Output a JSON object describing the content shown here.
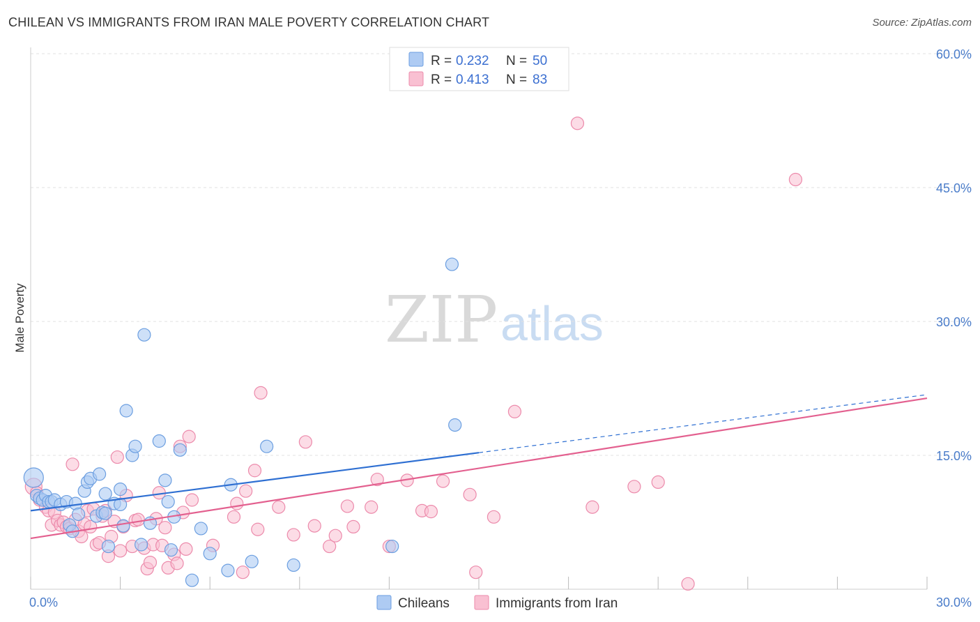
{
  "title": "CHILEAN VS IMMIGRANTS FROM IRAN MALE POVERTY CORRELATION CHART",
  "source": "Source: ZipAtlas.com",
  "watermark": {
    "zip": "ZIP",
    "atlas": "atlas"
  },
  "colors": {
    "chileans_fill": "#aecbf3",
    "chileans_stroke": "#6b9ee0",
    "chileans_line": "#2e6fd2",
    "iran_fill": "#f9c0d2",
    "iran_stroke": "#ec8aab",
    "iran_line": "#e3608f",
    "grid": "#e1e1e1",
    "tick_text": "#4a7cc9"
  },
  "legend_top": {
    "rows": [
      {
        "r_label": "R =",
        "r_value": "0.232",
        "n_label": "N =",
        "n_value": "50"
      },
      {
        "r_label": "R =",
        "r_value": "0.413",
        "n_label": "N =",
        "n_value": "83"
      }
    ]
  },
  "chart_data": {
    "type": "scatter",
    "title": "CHILEAN VS IMMIGRANTS FROM IRAN MALE POVERTY CORRELATION CHART",
    "xlabel": "",
    "ylabel": "Male Poverty",
    "xlim": [
      0,
      30
    ],
    "ylim": [
      0,
      60
    ],
    "x_tick_labels": [
      "0.0%",
      "30.0%"
    ],
    "y_ticks": [
      15,
      30,
      45,
      60
    ],
    "y_tick_labels": [
      "15.0%",
      "30.0%",
      "45.0%",
      "60.0%"
    ],
    "grid": true,
    "legend": [
      "Chileans",
      "Immigrants from Iran"
    ],
    "series": [
      {
        "name": "Chileans",
        "r": 0.232,
        "n": 50,
        "trend": {
          "x0": 0,
          "y0": 8.8,
          "x1": 15,
          "y1": 15.3,
          "dashed_to_x": 30,
          "dashed_to_y": 21.8
        },
        "points": [
          [
            0.1,
            12.5,
            14
          ],
          [
            0.2,
            10.5,
            9
          ],
          [
            0.3,
            10.2,
            9
          ],
          [
            0.4,
            10.0,
            9
          ],
          [
            0.5,
            10.5,
            9
          ],
          [
            0.6,
            9.8,
            9
          ],
          [
            0.7,
            9.8,
            9
          ],
          [
            0.8,
            10.0,
            9
          ],
          [
            1.0,
            9.5,
            9
          ],
          [
            1.2,
            9.8,
            9
          ],
          [
            1.3,
            7.2,
            9
          ],
          [
            1.4,
            6.5,
            9
          ],
          [
            1.5,
            9.6,
            9
          ],
          [
            1.6,
            8.4,
            9
          ],
          [
            1.8,
            11.0,
            9
          ],
          [
            1.9,
            12.0,
            9
          ],
          [
            2.0,
            12.4,
            9
          ],
          [
            2.2,
            8.2,
            9
          ],
          [
            2.3,
            12.9,
            9
          ],
          [
            2.4,
            8.6,
            9
          ],
          [
            2.5,
            10.7,
            9
          ],
          [
            2.6,
            4.8,
            9
          ],
          [
            2.8,
            9.6,
            9
          ],
          [
            3.0,
            9.5,
            9
          ],
          [
            3.0,
            11.2,
            9
          ],
          [
            3.1,
            7.1,
            9
          ],
          [
            3.2,
            20.0,
            9
          ],
          [
            3.4,
            15.0,
            9
          ],
          [
            3.5,
            16.0,
            9
          ],
          [
            3.7,
            5.0,
            9
          ],
          [
            3.8,
            28.5,
            9
          ],
          [
            4.0,
            7.4,
            9
          ],
          [
            4.3,
            16.6,
            9
          ],
          [
            4.5,
            12.2,
            9
          ],
          [
            4.6,
            9.8,
            9
          ],
          [
            4.7,
            4.4,
            9
          ],
          [
            4.8,
            8.1,
            9
          ],
          [
            5.0,
            15.6,
            9
          ],
          [
            5.4,
            1.0,
            9
          ],
          [
            5.7,
            6.8,
            9
          ],
          [
            6.0,
            4.0,
            9
          ],
          [
            6.6,
            2.1,
            9
          ],
          [
            6.7,
            11.7,
            9
          ],
          [
            7.4,
            3.1,
            9
          ],
          [
            7.9,
            16.0,
            9
          ],
          [
            8.8,
            2.7,
            9
          ],
          [
            14.1,
            36.4,
            9
          ],
          [
            12.1,
            4.8,
            9
          ],
          [
            14.2,
            18.4,
            9
          ],
          [
            2.5,
            8.5,
            9
          ]
        ]
      },
      {
        "name": "Immigrants from Iran",
        "r": 0.413,
        "n": 83,
        "trend": {
          "x0": 0,
          "y0": 5.7,
          "x1": 30,
          "y1": 21.4
        },
        "points": [
          [
            0.1,
            11.5,
            12
          ],
          [
            0.2,
            10.8,
            9
          ],
          [
            0.3,
            10.0,
            9
          ],
          [
            0.5,
            9.2,
            9
          ],
          [
            0.6,
            8.8,
            9
          ],
          [
            0.7,
            7.2,
            9
          ],
          [
            0.8,
            8.6,
            9
          ],
          [
            0.9,
            7.7,
            9
          ],
          [
            1.0,
            7.2,
            9
          ],
          [
            1.1,
            7.5,
            9
          ],
          [
            1.2,
            7.0,
            9
          ],
          [
            1.3,
            6.8,
            9
          ],
          [
            1.4,
            14.0,
            9
          ],
          [
            1.5,
            7.8,
            9
          ],
          [
            1.6,
            6.5,
            9
          ],
          [
            1.7,
            5.9,
            9
          ],
          [
            1.8,
            7.3,
            9
          ],
          [
            1.9,
            8.8,
            9
          ],
          [
            2.0,
            7.0,
            9
          ],
          [
            2.1,
            9.0,
            9
          ],
          [
            2.2,
            5.0,
            9
          ],
          [
            2.3,
            5.2,
            9
          ],
          [
            2.4,
            8.2,
            9
          ],
          [
            2.5,
            8.8,
            9
          ],
          [
            2.6,
            3.7,
            9
          ],
          [
            2.7,
            5.9,
            9
          ],
          [
            2.8,
            7.6,
            9
          ],
          [
            2.9,
            14.8,
            9
          ],
          [
            3.0,
            4.3,
            9
          ],
          [
            3.1,
            7.0,
            9
          ],
          [
            3.2,
            10.5,
            9
          ],
          [
            3.4,
            4.8,
            9
          ],
          [
            3.5,
            7.7,
            9
          ],
          [
            3.6,
            7.8,
            9
          ],
          [
            3.8,
            4.6,
            9
          ],
          [
            3.9,
            2.3,
            9
          ],
          [
            4.0,
            3.0,
            9
          ],
          [
            4.1,
            5.0,
            9
          ],
          [
            4.2,
            7.9,
            9
          ],
          [
            4.3,
            10.8,
            9
          ],
          [
            4.4,
            4.9,
            9
          ],
          [
            4.5,
            6.9,
            9
          ],
          [
            4.6,
            2.4,
            9
          ],
          [
            4.8,
            3.9,
            9
          ],
          [
            4.9,
            2.9,
            9
          ],
          [
            5.0,
            16.0,
            9
          ],
          [
            5.1,
            8.6,
            9
          ],
          [
            5.2,
            4.5,
            9
          ],
          [
            5.3,
            17.1,
            9
          ],
          [
            5.4,
            10.0,
            9
          ],
          [
            6.1,
            4.9,
            9
          ],
          [
            6.8,
            8.1,
            9
          ],
          [
            6.9,
            9.6,
            9
          ],
          [
            7.1,
            1.9,
            9
          ],
          [
            7.2,
            11.0,
            9
          ],
          [
            7.5,
            13.3,
            9
          ],
          [
            7.6,
            6.7,
            9
          ],
          [
            7.7,
            22.0,
            9
          ],
          [
            8.3,
            9.2,
            9
          ],
          [
            8.8,
            6.1,
            9
          ],
          [
            9.2,
            16.5,
            9
          ],
          [
            9.5,
            7.1,
            9
          ],
          [
            10.0,
            4.8,
            9
          ],
          [
            10.2,
            6.0,
            9
          ],
          [
            10.6,
            9.3,
            9
          ],
          [
            10.8,
            7.0,
            9
          ],
          [
            11.4,
            9.2,
            9
          ],
          [
            11.6,
            12.3,
            9
          ],
          [
            12.0,
            4.8,
            9
          ],
          [
            12.6,
            12.2,
            9
          ],
          [
            13.1,
            8.8,
            9
          ],
          [
            13.4,
            8.7,
            9
          ],
          [
            13.8,
            12.1,
            9
          ],
          [
            14.7,
            10.6,
            9
          ],
          [
            14.9,
            1.9,
            9
          ],
          [
            15.5,
            8.1,
            9
          ],
          [
            16.2,
            19.9,
            9
          ],
          [
            18.3,
            52.2,
            9
          ],
          [
            18.8,
            9.2,
            9
          ],
          [
            20.2,
            11.5,
            9
          ],
          [
            21.0,
            12.0,
            9
          ],
          [
            22.0,
            0.6,
            9
          ],
          [
            25.6,
            45.9,
            9
          ]
        ]
      }
    ]
  }
}
